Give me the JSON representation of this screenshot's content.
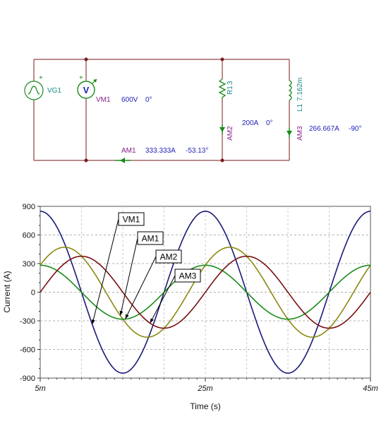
{
  "schematic": {
    "source": {
      "name": "VG1"
    },
    "voltmeter": {
      "name": "VM1",
      "value": "600V",
      "phase": "0°",
      "glyph": "V"
    },
    "ammeter_main": {
      "name": "AM1",
      "value": "333.333A",
      "phase": "-53.13°"
    },
    "resistor": {
      "name": "R1",
      "value": "3"
    },
    "ammeter_r": {
      "name": "AM2",
      "value": "200A",
      "phase": "0°"
    },
    "inductor": {
      "name": "L1",
      "value": "7.162m"
    },
    "ammeter_l": {
      "name": "AM3",
      "value": "266.667A",
      "phase": "-90°"
    },
    "plus_sign": "+",
    "colors": {
      "wire": "#7a1a1a",
      "component": "#1a8a1a",
      "node": "#7a1a1a",
      "label_name": "#8a1f8a",
      "label_value": "#1f1fb8",
      "name_teal": "#1a8a8a"
    }
  },
  "chart_data": {
    "type": "line",
    "xlabel": "Time (s)",
    "ylabel": "Current (A)",
    "xlim": [
      0.005,
      0.045
    ],
    "ylim": [
      -900,
      900
    ],
    "x_ticks": [
      0.005,
      0.025,
      0.045
    ],
    "x_tick_labels": [
      "5m",
      "25m",
      "45m"
    ],
    "y_ticks": [
      900,
      600,
      300,
      0,
      -300,
      -600,
      -900
    ],
    "y_tick_labels": [
      "900",
      "600",
      "300",
      "0",
      "-300",
      "-600",
      "-900"
    ],
    "grid": true,
    "frequency_hz": 50,
    "series": [
      {
        "name": "VM1",
        "amplitude": 848.5,
        "phase_deg": 0,
        "color": "#1a1a7a"
      },
      {
        "name": "AM1",
        "amplitude": 471.4,
        "phase_deg": -53.13,
        "color": "#8a8a10"
      },
      {
        "name": "AM2",
        "amplitude": 282.8,
        "phase_deg": 0,
        "color": "#1a8a1a"
      },
      {
        "name": "AM3",
        "amplitude": 377.1,
        "phase_deg": -90,
        "color": "#7a1010"
      }
    ],
    "callouts": [
      {
        "series": "VM1",
        "label": "VM1"
      },
      {
        "series": "AM1",
        "label": "AM1"
      },
      {
        "series": "AM2",
        "label": "AM2"
      },
      {
        "series": "AM3",
        "label": "AM3"
      }
    ]
  }
}
